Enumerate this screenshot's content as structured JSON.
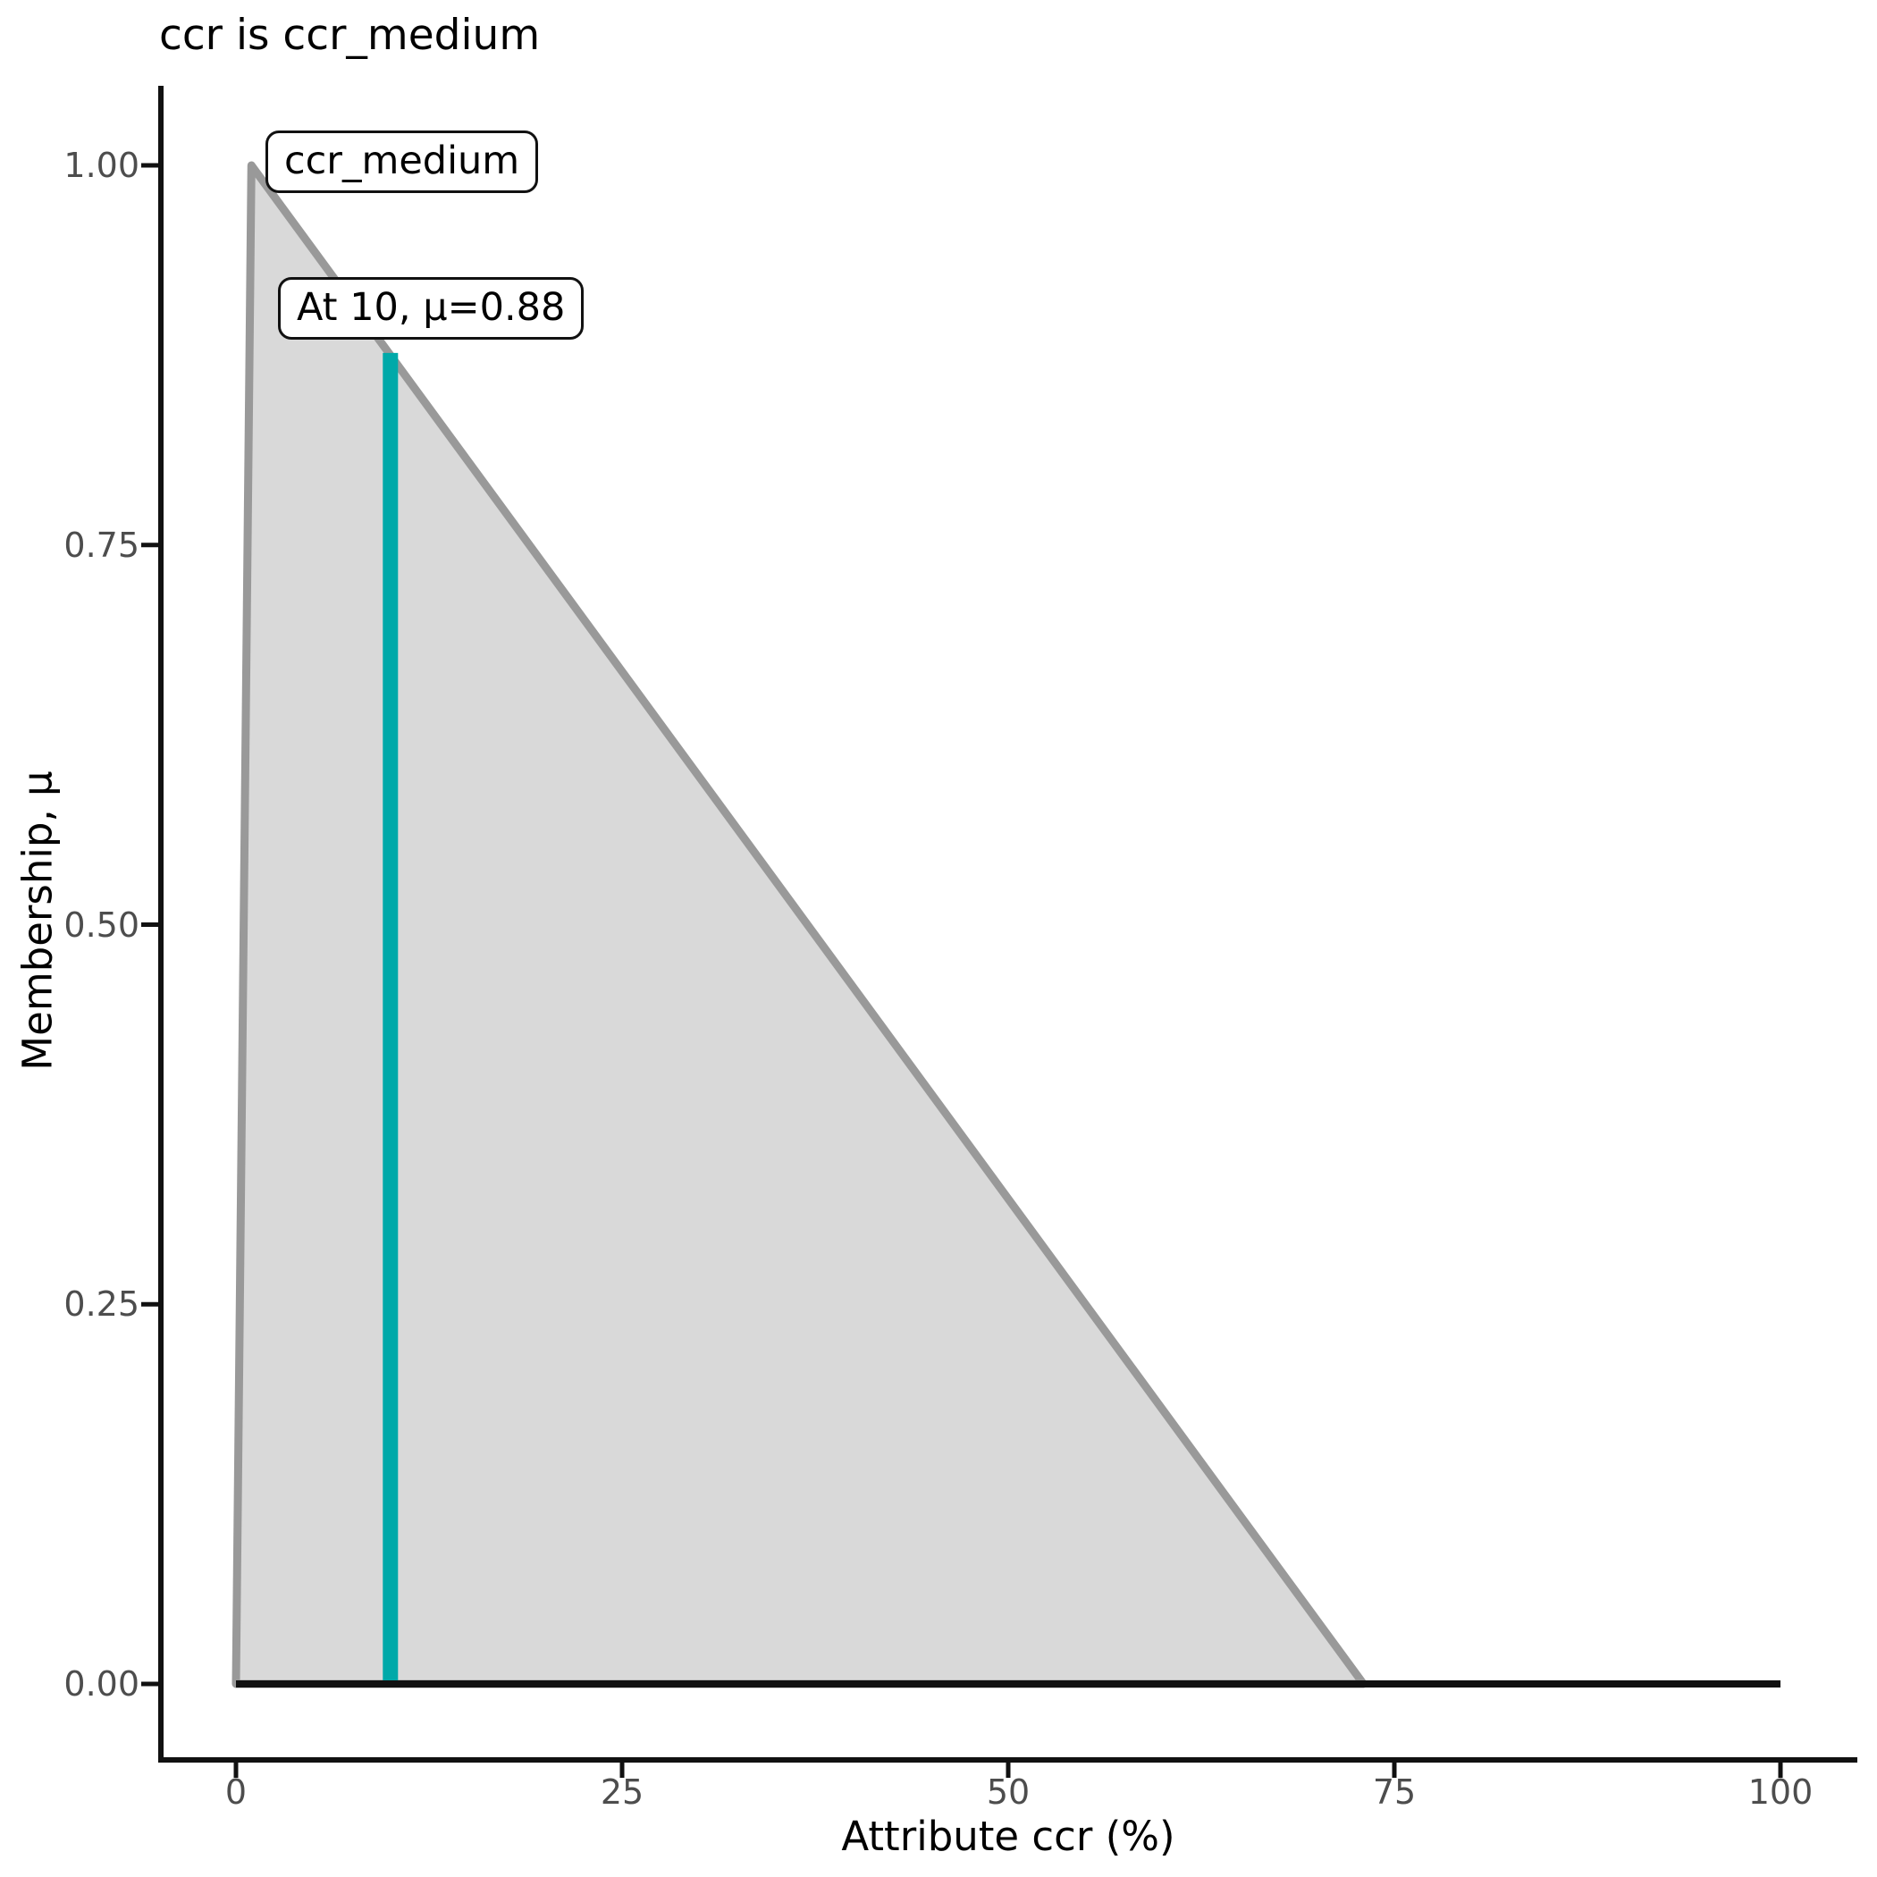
{
  "title": "ccr is ccr_medium",
  "annotations": {
    "set_label": "ccr_medium",
    "point_label": "At 10, μ=0.88"
  },
  "chart_data": {
    "type": "area",
    "title": "ccr is ccr_medium",
    "xlabel": "Attribute ccr (%)",
    "ylabel": "Membership, μ",
    "xlim": [
      0,
      100
    ],
    "ylim": [
      0,
      1
    ],
    "xticks": {
      "labels": [
        "0",
        "25",
        "50",
        "75",
        "100"
      ],
      "values": [
        0,
        25,
        50,
        75,
        100
      ]
    },
    "yticks": {
      "labels": [
        "0.00",
        "0.25",
        "0.50",
        "0.75",
        "1.00"
      ],
      "values": [
        0,
        0.25,
        0.5,
        0.75,
        1
      ]
    },
    "grid": "off",
    "legend": "none",
    "series": [
      {
        "name": "ccr_medium",
        "kind": "triangular-membership-function",
        "points": [
          [
            0,
            0
          ],
          [
            1,
            1
          ],
          [
            73,
            0
          ]
        ],
        "fill_color": "#d9d9d9",
        "stroke_color": "#999999"
      },
      {
        "name": "zero-membership-baseline",
        "kind": "line",
        "points": [
          [
            0,
            0
          ],
          [
            100,
            0
          ]
        ],
        "stroke_color": "#111111"
      }
    ],
    "indicator": {
      "x": 10,
      "mu": 0.88,
      "color": "#00a9a9",
      "label": "At 10, μ=0.88"
    }
  },
  "colors": {
    "axis": "#111111",
    "tick_text": "#4d4d4d",
    "membership_fill": "#d9d9d9",
    "membership_stroke": "#999999",
    "baseline": "#111111",
    "indicator": "#00a9a9"
  }
}
